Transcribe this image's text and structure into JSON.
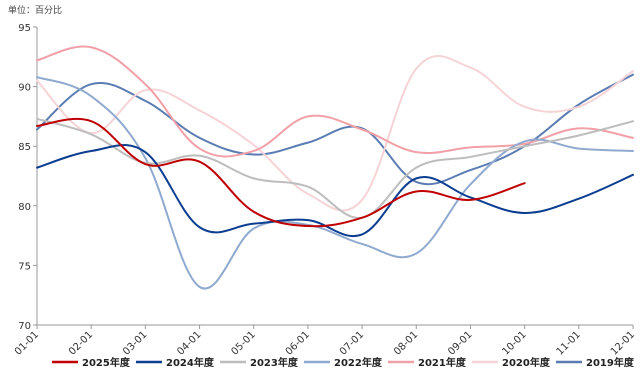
{
  "unit_label": "单位：百分比",
  "chart_data": {
    "type": "line",
    "ylabel": "单位：百分比",
    "ylim": [
      70,
      95
    ],
    "yticks": [
      70,
      75,
      80,
      85,
      90,
      95
    ],
    "categories": [
      "01-01",
      "02-01",
      "03-01",
      "04-01",
      "05-01",
      "06-01",
      "07-01",
      "08-01",
      "09-01",
      "10-01",
      "11-01",
      "12-01"
    ],
    "grid": false,
    "legend_position": "bottom",
    "series": [
      {
        "name": "2025年度",
        "color": "#C00000",
        "values": [
          86.7,
          87.1,
          83.5,
          83.7,
          79.5,
          78.3,
          79.0,
          81.2,
          80.5,
          81.9,
          null,
          null
        ]
      },
      {
        "name": "2024年度",
        "color": "#0B3D91",
        "values": [
          83.2,
          84.6,
          84.5,
          78.2,
          78.5,
          78.8,
          77.6,
          82.3,
          80.7,
          79.4,
          80.6,
          82.6
        ]
      },
      {
        "name": "2023年度",
        "color": "#BDBDBD",
        "values": [
          87.3,
          86.0,
          83.6,
          84.2,
          82.3,
          81.6,
          79.0,
          83.2,
          84.1,
          85.0,
          85.9,
          87.1
        ]
      },
      {
        "name": "2022年度",
        "color": "#8FA9CF",
        "values": [
          90.8,
          89.2,
          84.0,
          73.2,
          78.1,
          78.4,
          76.8,
          76.0,
          81.8,
          85.4,
          84.8,
          84.6
        ]
      },
      {
        "name": "2021年度",
        "color": "#F2A0A8",
        "values": [
          92.2,
          93.3,
          90.2,
          84.8,
          84.6,
          87.5,
          86.4,
          84.5,
          84.9,
          85.2,
          86.5,
          85.7
        ]
      },
      {
        "name": "2020年度",
        "color": "#F5D3D6",
        "values": [
          90.5,
          86.1,
          89.7,
          88.0,
          85.1,
          81.0,
          80.5,
          91.5,
          91.6,
          88.3,
          88.3,
          91.3
        ]
      },
      {
        "name": "2019年度",
        "color": "#5A7CB3",
        "values": [
          86.4,
          90.2,
          88.8,
          85.7,
          84.3,
          85.3,
          86.5,
          82.0,
          83.0,
          85.0,
          88.5,
          91.0
        ]
      }
    ]
  }
}
